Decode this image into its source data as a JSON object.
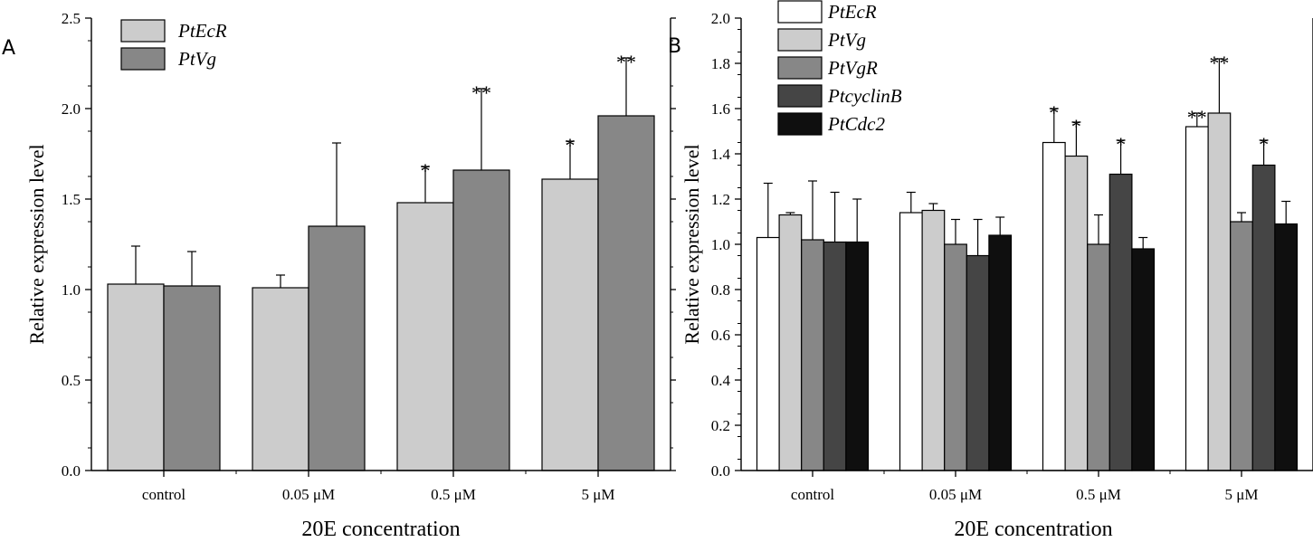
{
  "chart_data": [
    {
      "panel": "A",
      "type": "bar",
      "categories": [
        "control",
        "0.05 μM",
        "0.5 μM",
        "5 μM"
      ],
      "series": [
        {
          "name": "PtEcR",
          "color": "#cccccc",
          "values": [
            1.03,
            1.01,
            1.48,
            1.61
          ],
          "errors": [
            0.21,
            0.07,
            0.2,
            0.21
          ],
          "significance": [
            "",
            "",
            "*",
            "*"
          ]
        },
        {
          "name": "PtVg",
          "color": "#878787",
          "values": [
            1.02,
            1.35,
            1.66,
            1.96
          ],
          "errors": [
            0.19,
            0.46,
            0.45,
            0.32
          ],
          "significance": [
            "",
            "",
            "**",
            "**"
          ]
        }
      ],
      "ylim": [
        0,
        2.5
      ],
      "yticks": [
        "0.0",
        "0.5",
        "1.0",
        "1.5",
        "2.0",
        "2.5"
      ],
      "xlabel": "20E concentration",
      "ylabel": "Relative expression level",
      "legend": "top-left"
    },
    {
      "panel": "B",
      "type": "bar",
      "categories": [
        "control",
        "0.05 μM",
        "0.5 μM",
        "5 μM"
      ],
      "series": [
        {
          "name": "PtEcR",
          "color": "#ffffff",
          "values": [
            1.03,
            1.14,
            1.45,
            1.52
          ],
          "errors": [
            0.24,
            0.09,
            0.15,
            0.06
          ],
          "significance": [
            "",
            "",
            "*",
            "**"
          ]
        },
        {
          "name": "PtVg",
          "color": "#cccccc",
          "values": [
            1.13,
            1.15,
            1.39,
            1.58
          ],
          "errors": [
            0.01,
            0.03,
            0.15,
            0.24
          ],
          "significance": [
            "",
            "",
            "*",
            "**"
          ]
        },
        {
          "name": "PtVgR",
          "color": "#878787",
          "values": [
            1.02,
            1.0,
            1.0,
            1.1
          ],
          "errors": [
            0.26,
            0.11,
            0.13,
            0.04
          ],
          "significance": [
            "",
            "",
            "",
            ""
          ]
        },
        {
          "name": "PtcyclinB",
          "color": "#454545",
          "values": [
            1.01,
            0.95,
            1.31,
            1.35
          ],
          "errors": [
            0.22,
            0.16,
            0.15,
            0.11
          ],
          "significance": [
            "",
            "",
            "*",
            "*"
          ]
        },
        {
          "name": "PtCdc2",
          "color": "#0f0f0f",
          "values": [
            1.01,
            1.04,
            0.98,
            1.09
          ],
          "errors": [
            0.19,
            0.08,
            0.05,
            0.1
          ],
          "significance": [
            "",
            "",
            "",
            ""
          ]
        }
      ],
      "ylim": [
        0,
        2.0
      ],
      "yticks": [
        "0.0",
        "0.2",
        "0.4",
        "0.6",
        "0.8",
        "1.0",
        "1.2",
        "1.4",
        "1.6",
        "1.8",
        "2.0"
      ],
      "xlabel": "20E concentration",
      "ylabel": "Relative expression level",
      "legend": "top-left"
    }
  ]
}
